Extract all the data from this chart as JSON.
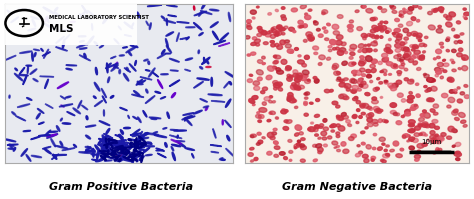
{
  "fig_width": 4.74,
  "fig_height": 1.99,
  "dpi": 100,
  "left_bg": "#e8eaf0",
  "right_bg": "#f8f0e8",
  "left_label": "Gram Positive Bacteria",
  "right_label": "Gram Negative Bacteria",
  "left_bacteria_color": "#1a1aaa",
  "left_bacteria_color2": "#6600cc",
  "left_bacteria_color3": "#cc0033",
  "right_bacteria_color": "#cc3344",
  "right_bacteria_color2": "#dd5566",
  "right_bacteria_color3": "#bb2233",
  "scale_label": "10μm",
  "logo_text1": "MEDICAL LABORATORY SCIENTIST",
  "logo_text2": "MLS",
  "label_fontsize": 8.0,
  "label_fontweight": "bold",
  "label_fontstyle": "italic"
}
